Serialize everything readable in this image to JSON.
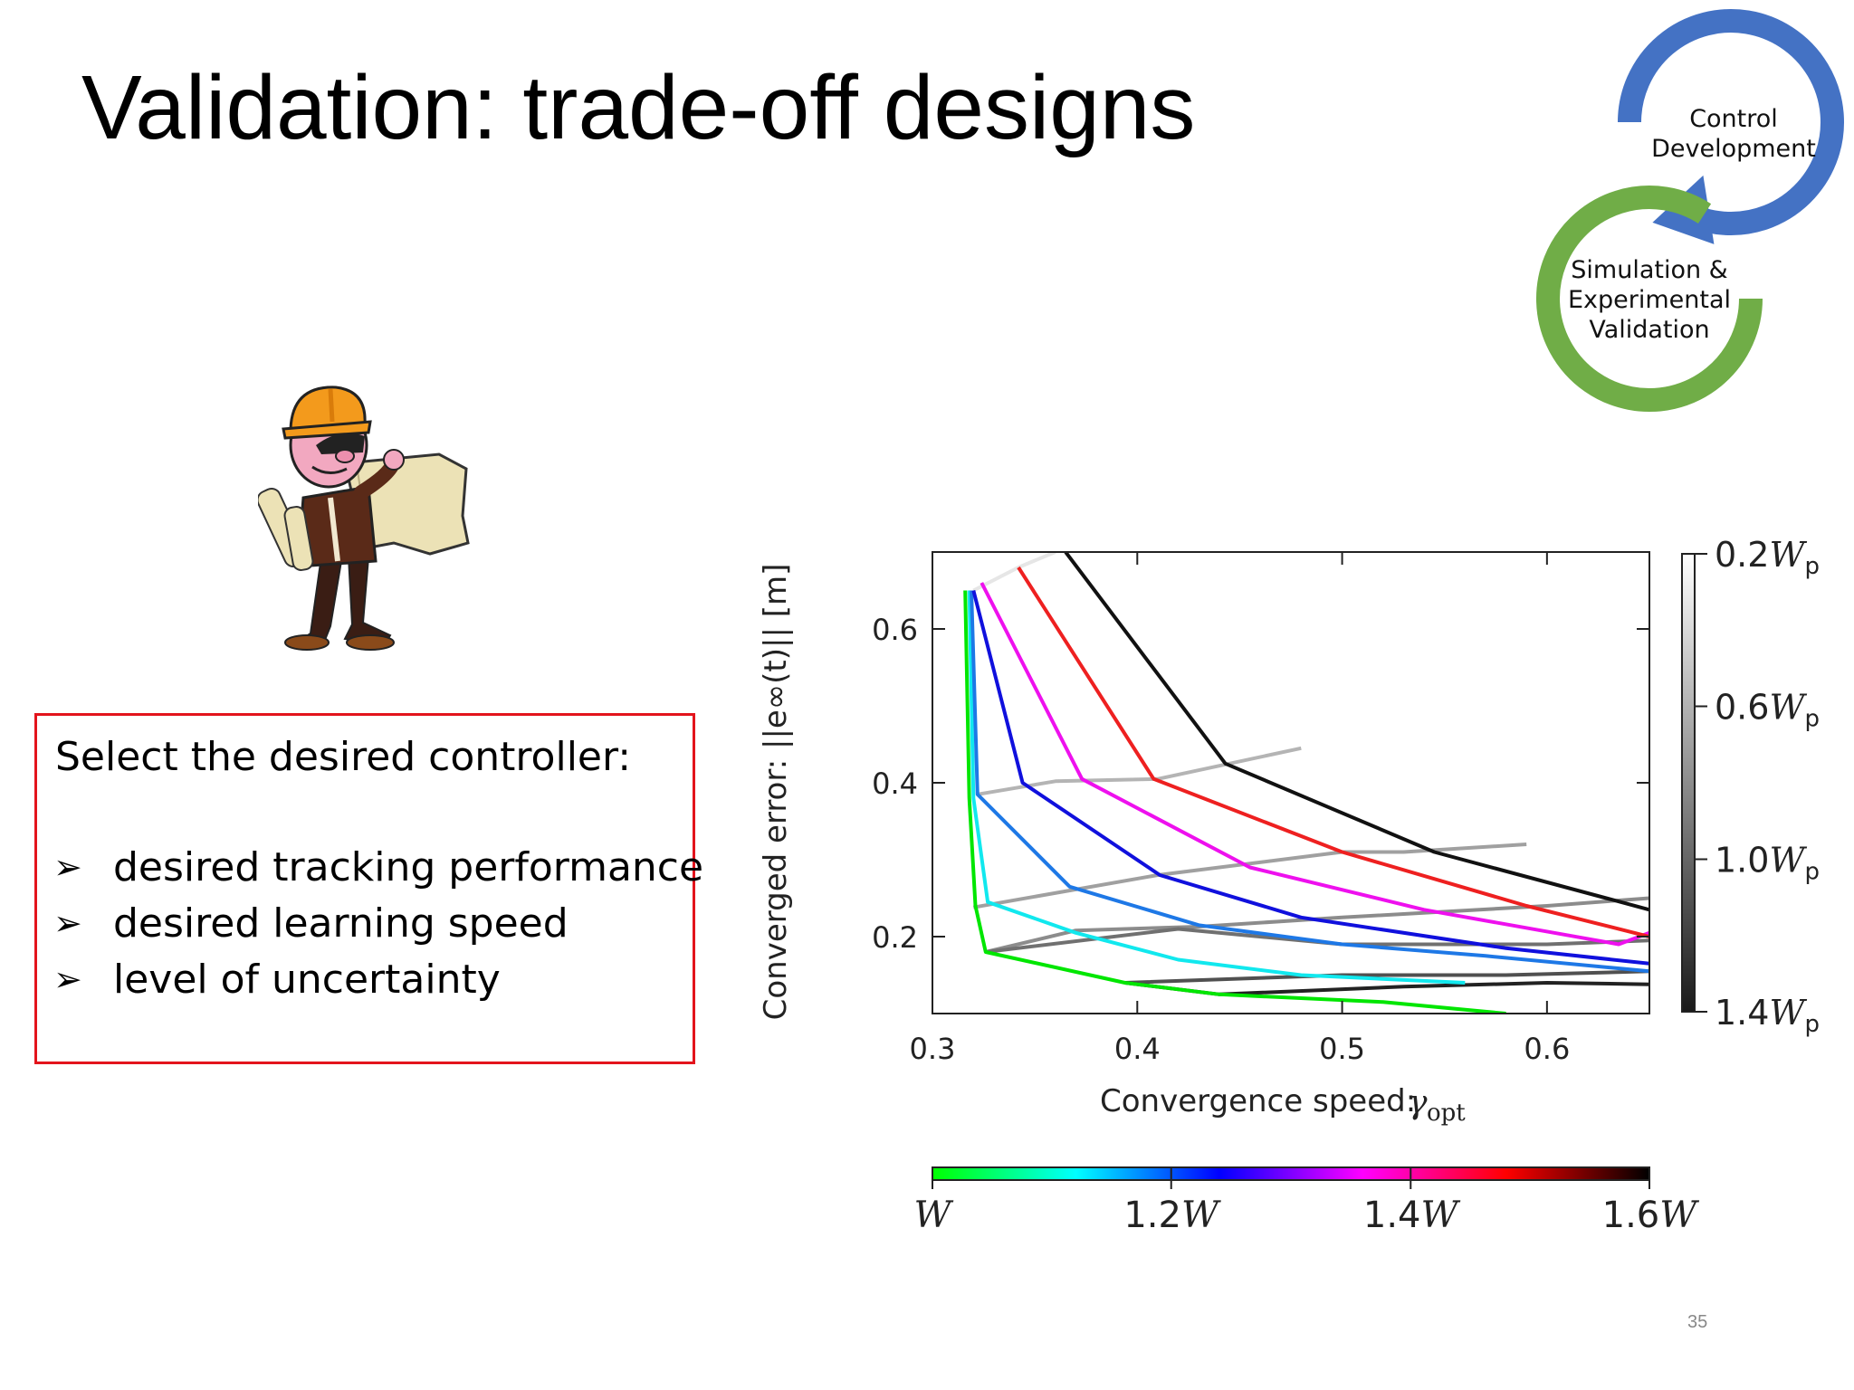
{
  "slide": {
    "title": "Validation: trade-off designs",
    "page_number": "35"
  },
  "cycle": {
    "top_label": "Control\nDevelopment",
    "bottom_label": "Simulation &\nExperimental\nValidation",
    "colors": {
      "top": "#4472c4",
      "bottom": "#70ad47"
    }
  },
  "illustration": {
    "icon": "engineer-with-blueprint-icon"
  },
  "callout": {
    "heading": "Select the desired controller:",
    "bullet_icon": "arrowhead-bullet-icon",
    "items": [
      {
        "text": "desired tracking performance"
      },
      {
        "text": "desired learning speed"
      },
      {
        "text": "level of uncertainty"
      }
    ],
    "border_color": "#e3141c"
  },
  "chart_data": {
    "type": "line",
    "xlabel": "Convergence speed:",
    "xlabel_symbol": "γ",
    "xlabel_subscript": "opt",
    "ylabel": "Converged error:  ||e∞(t)|| [m]",
    "xlim": [
      0.3,
      0.65
    ],
    "ylim": [
      0.1,
      0.7
    ],
    "xticks": [
      {
        "v": 0.3,
        "label": "0.3"
      },
      {
        "v": 0.4,
        "label": "0.4"
      },
      {
        "v": 0.5,
        "label": "0.5"
      },
      {
        "v": 0.6,
        "label": "0.6"
      }
    ],
    "yticks": [
      {
        "v": 0.2,
        "label": "0.2"
      },
      {
        "v": 0.4,
        "label": "0.4"
      },
      {
        "v": 0.6,
        "label": "0.6"
      }
    ],
    "grid": false,
    "w_series": [
      {
        "name": "W",
        "color": "#00e600",
        "points": [
          [
            0.316,
            0.65
          ],
          [
            0.318,
            0.38
          ],
          [
            0.321,
            0.24
          ],
          [
            0.326,
            0.18
          ],
          [
            0.394,
            0.14
          ],
          [
            0.44,
            0.125
          ],
          [
            0.52,
            0.115
          ],
          [
            0.58,
            0.1
          ]
        ]
      },
      {
        "name": "1.1W",
        "color": "#11e8ee",
        "points": [
          [
            0.318,
            0.65
          ],
          [
            0.32,
            0.38
          ],
          [
            0.327,
            0.245
          ],
          [
            0.37,
            0.205
          ],
          [
            0.42,
            0.17
          ],
          [
            0.48,
            0.15
          ],
          [
            0.56,
            0.14
          ]
        ]
      },
      {
        "name": "1.2W",
        "color": "#1e78e6",
        "points": [
          [
            0.319,
            0.65
          ],
          [
            0.322,
            0.385
          ],
          [
            0.367,
            0.265
          ],
          [
            0.43,
            0.215
          ],
          [
            0.5,
            0.19
          ],
          [
            0.57,
            0.175
          ],
          [
            0.65,
            0.155
          ]
        ]
      },
      {
        "name": "1.3W",
        "color": "#1010dd",
        "points": [
          [
            0.32,
            0.65
          ],
          [
            0.344,
            0.4
          ],
          [
            0.411,
            0.28
          ],
          [
            0.48,
            0.225
          ],
          [
            0.58,
            0.185
          ],
          [
            0.65,
            0.165
          ]
        ]
      },
      {
        "name": "1.4W",
        "color": "#ee10ee",
        "points": [
          [
            0.324,
            0.66
          ],
          [
            0.373,
            0.405
          ],
          [
            0.455,
            0.29
          ],
          [
            0.54,
            0.235
          ],
          [
            0.635,
            0.19
          ],
          [
            0.65,
            0.205
          ]
        ]
      },
      {
        "name": "1.5W",
        "color": "#ee2020",
        "points": [
          [
            0.342,
            0.68
          ],
          [
            0.408,
            0.405
          ],
          [
            0.5,
            0.31
          ],
          [
            0.59,
            0.24
          ],
          [
            0.65,
            0.2
          ]
        ]
      },
      {
        "name": "1.6W",
        "color": "#111111",
        "points": [
          [
            0.365,
            0.7
          ],
          [
            0.443,
            0.425
          ],
          [
            0.545,
            0.31
          ],
          [
            0.65,
            0.235
          ]
        ]
      }
    ],
    "wp_series": [
      {
        "name": "0.2Wp",
        "color": "#e6e6e6",
        "points": [
          [
            0.32,
            0.65
          ],
          [
            0.342,
            0.68
          ],
          [
            0.36,
            0.7
          ]
        ]
      },
      {
        "name": "0.6Wp",
        "color": "#b4b4b4",
        "points": [
          [
            0.322,
            0.385
          ],
          [
            0.36,
            0.402
          ],
          [
            0.41,
            0.405
          ],
          [
            0.48,
            0.445
          ]
        ]
      },
      {
        "name": "0.8Wp",
        "color": "#a0a0a0",
        "points": [
          [
            0.32,
            0.238
          ],
          [
            0.41,
            0.28
          ],
          [
            0.5,
            0.31
          ],
          [
            0.53,
            0.31
          ],
          [
            0.59,
            0.32
          ]
        ]
      },
      {
        "name": "1.0Wp",
        "color": "#8c8c8c",
        "points": [
          [
            0.326,
            0.18
          ],
          [
            0.37,
            0.208
          ],
          [
            0.43,
            0.213
          ],
          [
            0.5,
            0.225
          ],
          [
            0.6,
            0.24
          ],
          [
            0.65,
            0.25
          ]
        ]
      },
      {
        "name": "1.2Wp",
        "color": "#707070",
        "points": [
          [
            0.326,
            0.18
          ],
          [
            0.42,
            0.21
          ],
          [
            0.5,
            0.19
          ],
          [
            0.6,
            0.19
          ],
          [
            0.65,
            0.195
          ]
        ]
      },
      {
        "name": "1.3Wp",
        "color": "#505050",
        "points": [
          [
            0.394,
            0.14
          ],
          [
            0.5,
            0.15
          ],
          [
            0.58,
            0.15
          ],
          [
            0.65,
            0.155
          ]
        ]
      },
      {
        "name": "1.4Wp",
        "color": "#222222",
        "points": [
          [
            0.394,
            0.14
          ],
          [
            0.44,
            0.125
          ],
          [
            0.53,
            0.135
          ],
          [
            0.6,
            0.14
          ],
          [
            0.65,
            0.138
          ]
        ]
      }
    ],
    "wp_colorbar": {
      "gradient": [
        "#ffffff",
        "#1a1a1a"
      ],
      "ticks": [
        {
          "frac": 0.0,
          "label": "0.2",
          "sub": "p"
        },
        {
          "frac": 0.333,
          "label": "0.6",
          "sub": "p"
        },
        {
          "frac": 0.667,
          "label": "1.0",
          "sub": "p"
        },
        {
          "frac": 1.0,
          "label": "1.4",
          "sub": "p"
        }
      ],
      "symbol": "W"
    },
    "w_colorbar": {
      "gradient": [
        "#00ff00",
        "#00ffff",
        "#0000ff",
        "#ff00ff",
        "#ff0000",
        "#000000"
      ],
      "ticks": [
        {
          "frac": 0.0,
          "label": ""
        },
        {
          "frac": 0.333,
          "label": "1.2"
        },
        {
          "frac": 0.667,
          "label": "1.4"
        },
        {
          "frac": 1.0,
          "label": "1.6"
        }
      ],
      "symbol": "W"
    }
  }
}
